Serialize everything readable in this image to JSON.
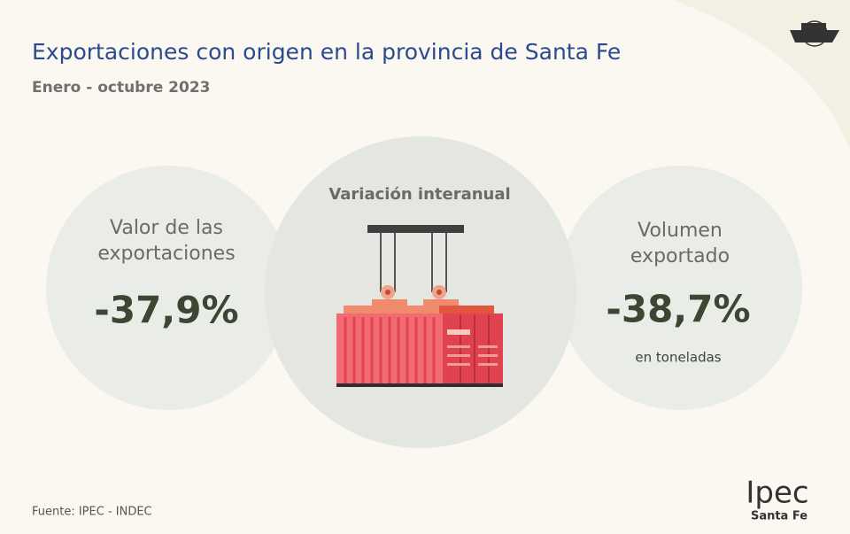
{
  "header": {
    "title": "Exportaciones con origen en la provincia de Santa Fe",
    "subtitle": "Enero - octubre 2023"
  },
  "center": {
    "label": "Variación interanual"
  },
  "left": {
    "label": [
      "Valor de las",
      "exportaciones"
    ],
    "value": "-37,9%"
  },
  "right": {
    "label": [
      "Volumen",
      "exportado"
    ],
    "value": "-38,7%",
    "unit": "en toneladas"
  },
  "footer": {
    "source": "Fuente: IPEC - INDEC"
  },
  "logo": {
    "name": "Ipec",
    "sub": "Santa Fe"
  }
}
